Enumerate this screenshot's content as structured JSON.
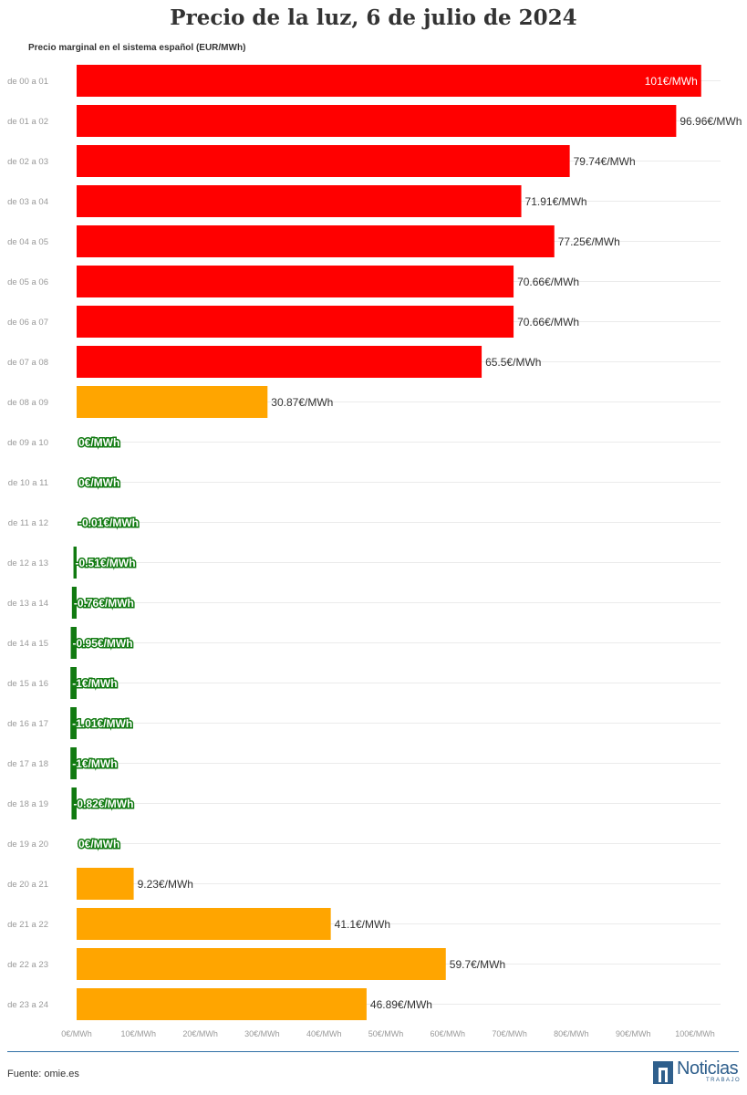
{
  "header": {
    "title": "Precio de la luz, 6 de julio de 2024",
    "subtitle": "Precio marginal en el sistema español (EUR/MWh)"
  },
  "footer": {
    "source": "Fuente: omie.es",
    "logo_word": "Noticias",
    "logo_sub": "TRABAJO"
  },
  "colors": {
    "high": "#ff0000",
    "medium": "#ffa500",
    "negative": "#117a11",
    "gridline": "#ebebeb"
  },
  "chart_data": {
    "type": "bar",
    "orientation": "horizontal",
    "title": "Precio de la luz, 6 de julio de 2024",
    "subtitle": "Precio marginal en el sistema español (EUR/MWh)",
    "xlim": [
      0,
      100
    ],
    "x_ticks": [
      0,
      10,
      20,
      30,
      40,
      50,
      60,
      70,
      80,
      90,
      100
    ],
    "x_tick_labels": [
      "0€/MWh",
      "10€/MWh",
      "20€/MWh",
      "30€/MWh",
      "40€/MWh",
      "50€/MWh",
      "60€/MWh",
      "70€/MWh",
      "80€/MWh",
      "90€/MWh",
      "100€/MWh"
    ],
    "grid": true,
    "categories": [
      "de 00 a 01",
      "de 01 a 02",
      "de 02 a 03",
      "de 03 a 04",
      "de 04 a 05",
      "de 05 a 06",
      "de 06 a 07",
      "de 07 a 08",
      "de 08 a 09",
      "de 09 a 10",
      "de 10 a 11",
      "de 11 a 12",
      "de 12 a 13",
      "de 13 a 14",
      "de 14 a 15",
      "de 15 a 16",
      "de 16 a 17",
      "de 17 a 18",
      "de 18 a 19",
      "de 19 a 20",
      "de 20 a 21",
      "de 21 a 22",
      "de 22 a 23",
      "de 23 a 24"
    ],
    "values": [
      101,
      96.96,
      79.74,
      71.91,
      77.25,
      70.66,
      70.66,
      65.5,
      30.87,
      0,
      0,
      -0.01,
      -0.51,
      -0.76,
      -0.95,
      -1,
      -1.01,
      -1,
      -0.82,
      0,
      9.23,
      41.1,
      59.7,
      46.89
    ],
    "labels": [
      "101€/MWh",
      "96.96€/MWh",
      "79.74€/MWh",
      "71.91€/MWh",
      "77.25€/MWh",
      "70.66€/MWh",
      "70.66€/MWh",
      "65.5€/MWh",
      "30.87€/MWh",
      "0€/MWh",
      "0€/MWh",
      "-0.01€/MWh",
      "-0.51€/MWh",
      "-0.76€/MWh",
      "-0.95€/MWh",
      "-1€/MWh",
      "-1.01€/MWh",
      "-1€/MWh",
      "-0.82€/MWh",
      "0€/MWh",
      "9.23€/MWh",
      "41.1€/MWh",
      "59.7€/MWh",
      "46.89€/MWh"
    ],
    "color_groups": [
      "high",
      "high",
      "high",
      "high",
      "high",
      "high",
      "high",
      "high",
      "medium",
      "negative",
      "negative",
      "negative",
      "negative",
      "negative",
      "negative",
      "negative",
      "negative",
      "negative",
      "negative",
      "negative",
      "medium",
      "medium",
      "medium",
      "medium"
    ]
  }
}
